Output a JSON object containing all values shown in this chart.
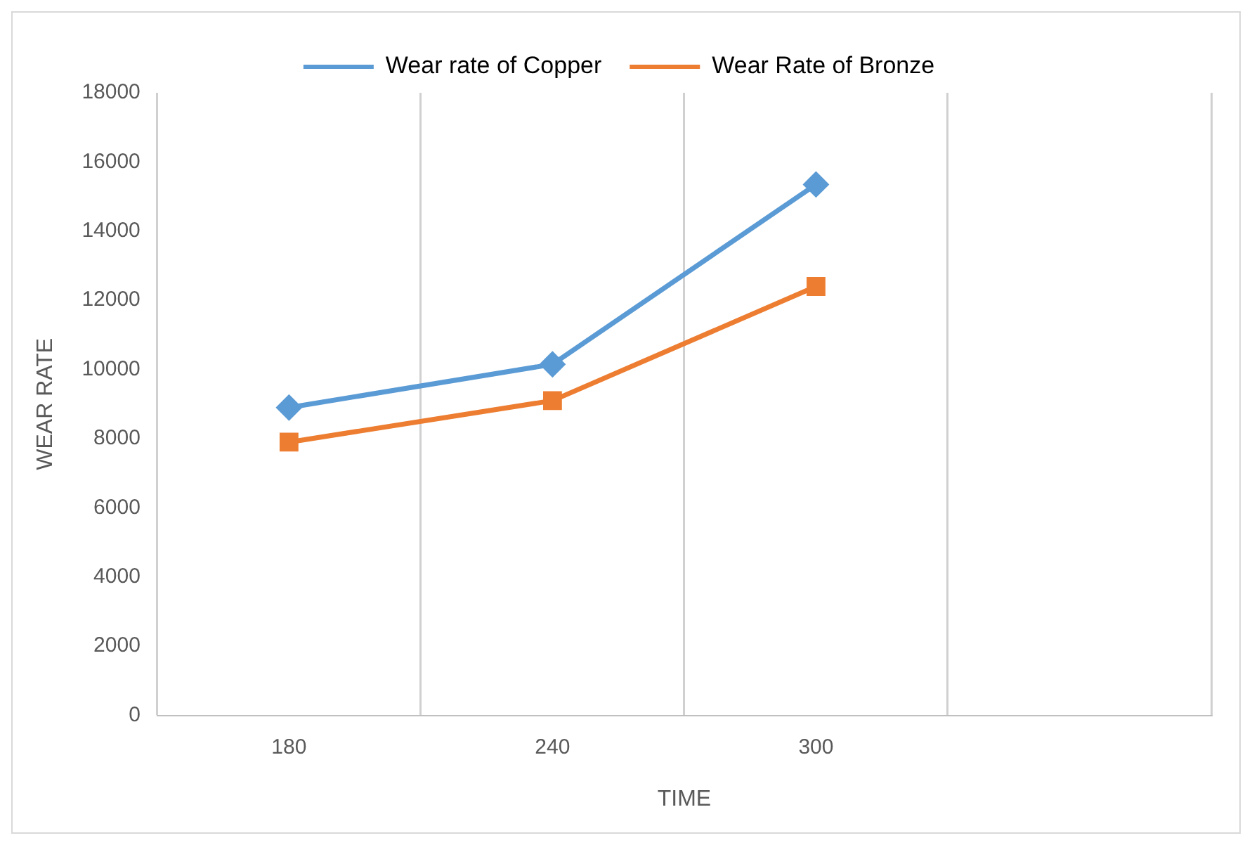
{
  "chart_data": {
    "type": "line",
    "xlabel": "TIME",
    "ylabel": "WEAR RATE",
    "categories": [
      "180",
      "240",
      "300",
      null
    ],
    "series": [
      {
        "name": "Wear rate of Copper",
        "color": "#5b9bd5",
        "marker": "diamond",
        "values": [
          8900,
          10150,
          15350,
          null
        ]
      },
      {
        "name": "Wear Rate of Bronze",
        "color": "#ed7d31",
        "marker": "square",
        "values": [
          7900,
          9100,
          12400,
          null
        ]
      }
    ],
    "ylim": [
      0,
      18000
    ],
    "yticks": [
      0,
      2000,
      4000,
      6000,
      8000,
      10000,
      12000,
      14000,
      16000,
      18000
    ],
    "grid": "x",
    "legend": "top"
  }
}
